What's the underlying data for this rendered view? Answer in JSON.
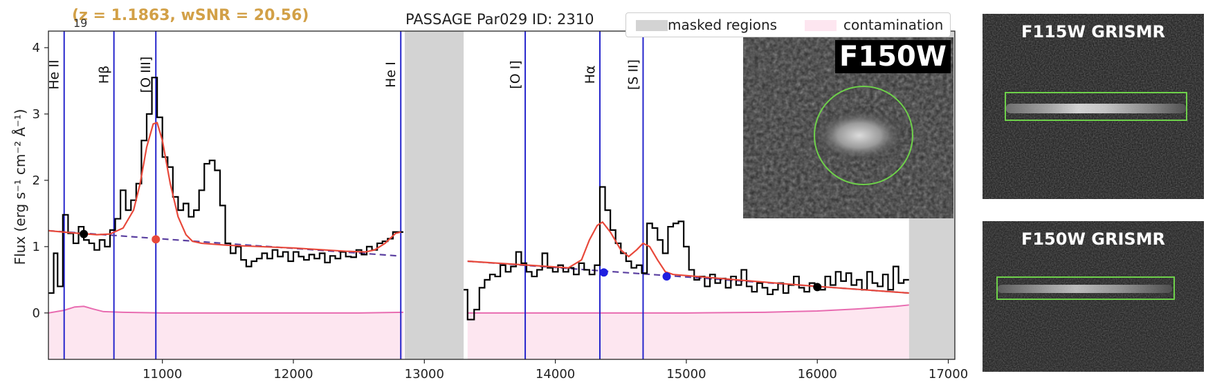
{
  "header": {
    "redshift_label": "(z = 1.1863, wSNR = 20.56)",
    "overlap_digits": "19",
    "plot_title": "PASSAGE Par029 ID: 2310"
  },
  "legend": {
    "masked": "masked regions",
    "contamination": "contamination"
  },
  "inset": {
    "label": "F150W"
  },
  "panels": [
    {
      "title": "F115W GRISMR"
    },
    {
      "title": "F150W GRISMR"
    }
  ],
  "colors": {
    "spectrum": "#000000",
    "model": "#e8483a",
    "continuum_dash": "#5a3fa0",
    "line_markers": "#2424cc",
    "masked": "#d3d3d3",
    "contamination_fill": "#fde6f0",
    "contamination_line": "#e86bb0",
    "label_text": "#d2a047",
    "aperture": "#6ed14a"
  },
  "chart_data": {
    "type": "line",
    "title": "PASSAGE Par029 ID: 2310",
    "xlabel": "",
    "ylabel": "Flux (erg s⁻¹ cm⁻² Å⁻¹)",
    "xlim": [
      10130,
      17050
    ],
    "ylim": [
      -0.7,
      4.25
    ],
    "xticks": [
      11000,
      12000,
      13000,
      14000,
      15000,
      16000,
      17000
    ],
    "yticks": [
      0,
      1,
      2,
      3,
      4
    ],
    "grid": false,
    "legend_position": "top-right",
    "masked_regions": [
      [
        12850,
        13300
      ],
      [
        16700,
        17050
      ]
    ],
    "emission_lines": [
      {
        "name": "He II",
        "x": 10250
      },
      {
        "name": "Hβ",
        "x": 10630
      },
      {
        "name": "[O III]",
        "x": 10950
      },
      {
        "name": "He I",
        "x": 12820
      },
      {
        "name": "[O I]",
        "x": 13770
      },
      {
        "name": "Hα",
        "x": 14340
      },
      {
        "name": "[S II]",
        "x": 14670
      }
    ],
    "series": [
      {
        "name": "spectrum",
        "style": "steps",
        "segments": [
          [
            [
              10130,
              0.3
            ],
            [
              10170,
              0.9
            ],
            [
              10200,
              0.4
            ],
            [
              10240,
              1.48
            ],
            [
              10280,
              1.2
            ],
            [
              10320,
              1.05
            ],
            [
              10360,
              1.3
            ],
            [
              10400,
              1.1
            ],
            [
              10440,
              1.05
            ],
            [
              10480,
              0.95
            ],
            [
              10520,
              1.1
            ],
            [
              10560,
              1.0
            ],
            [
              10600,
              1.25
            ],
            [
              10640,
              1.42
            ],
            [
              10680,
              1.85
            ],
            [
              10720,
              1.55
            ],
            [
              10760,
              1.7
            ],
            [
              10800,
              1.95
            ],
            [
              10840,
              2.6
            ],
            [
              10880,
              3.0
            ],
            [
              10920,
              3.55
            ],
            [
              10960,
              2.95
            ],
            [
              11000,
              2.35
            ],
            [
              11040,
              2.2
            ],
            [
              11080,
              1.75
            ],
            [
              11120,
              1.55
            ],
            [
              11160,
              1.65
            ],
            [
              11200,
              1.45
            ],
            [
              11240,
              1.55
            ],
            [
              11280,
              1.85
            ],
            [
              11320,
              2.25
            ],
            [
              11360,
              2.3
            ],
            [
              11400,
              2.15
            ],
            [
              11440,
              1.62
            ],
            [
              11480,
              1.05
            ],
            [
              11520,
              0.9
            ],
            [
              11560,
              1.0
            ],
            [
              11600,
              0.8
            ],
            [
              11640,
              0.7
            ],
            [
              11680,
              0.78
            ],
            [
              11720,
              0.82
            ],
            [
              11760,
              0.9
            ],
            [
              11800,
              0.82
            ],
            [
              11840,
              0.95
            ],
            [
              11880,
              0.85
            ],
            [
              11920,
              0.92
            ],
            [
              11960,
              0.78
            ],
            [
              12000,
              0.92
            ],
            [
              12040,
              0.85
            ],
            [
              12080,
              0.8
            ],
            [
              12120,
              0.88
            ],
            [
              12160,
              0.82
            ],
            [
              12200,
              0.9
            ],
            [
              12240,
              0.76
            ],
            [
              12280,
              0.86
            ],
            [
              12320,
              0.82
            ],
            [
              12360,
              0.92
            ],
            [
              12400,
              0.85
            ],
            [
              12440,
              0.84
            ],
            [
              12480,
              0.95
            ],
            [
              12520,
              0.88
            ],
            [
              12560,
              1.0
            ],
            [
              12600,
              0.95
            ],
            [
              12640,
              1.05
            ],
            [
              12680,
              1.08
            ],
            [
              12720,
              1.12
            ],
            [
              12760,
              1.22
            ],
            [
              12800,
              1.22
            ],
            [
              12840,
              1.22
            ]
          ],
          [
            [
              13300,
              0.35
            ],
            [
              13330,
              -0.1
            ],
            [
              13380,
              0.05
            ],
            [
              13420,
              0.38
            ],
            [
              13460,
              0.5
            ],
            [
              13500,
              0.58
            ],
            [
              13540,
              0.55
            ],
            [
              13580,
              0.72
            ],
            [
              13620,
              0.62
            ],
            [
              13660,
              0.7
            ],
            [
              13700,
              0.92
            ],
            [
              13740,
              0.75
            ],
            [
              13780,
              0.62
            ],
            [
              13820,
              0.55
            ],
            [
              13860,
              0.65
            ],
            [
              13900,
              0.9
            ],
            [
              13940,
              0.68
            ],
            [
              13980,
              0.62
            ],
            [
              14020,
              0.72
            ],
            [
              14060,
              0.62
            ],
            [
              14100,
              0.68
            ],
            [
              14140,
              0.58
            ],
            [
              14180,
              0.75
            ],
            [
              14220,
              0.65
            ],
            [
              14260,
              0.58
            ],
            [
              14300,
              0.72
            ],
            [
              14340,
              1.9
            ],
            [
              14380,
              1.55
            ],
            [
              14420,
              1.25
            ],
            [
              14460,
              1.05
            ],
            [
              14500,
              0.9
            ],
            [
              14540,
              0.78
            ],
            [
              14580,
              0.68
            ],
            [
              14620,
              0.72
            ],
            [
              14660,
              0.6
            ],
            [
              14700,
              1.35
            ],
            [
              14740,
              1.28
            ],
            [
              14780,
              1.1
            ],
            [
              14820,
              0.9
            ],
            [
              14860,
              1.3
            ],
            [
              14900,
              1.35
            ],
            [
              14940,
              1.38
            ],
            [
              14980,
              1.0
            ],
            [
              15020,
              0.65
            ],
            [
              15060,
              0.5
            ],
            [
              15100,
              0.55
            ],
            [
              15140,
              0.4
            ],
            [
              15180,
              0.58
            ],
            [
              15220,
              0.45
            ],
            [
              15260,
              0.52
            ],
            [
              15300,
              0.38
            ],
            [
              15340,
              0.55
            ],
            [
              15380,
              0.42
            ],
            [
              15420,
              0.65
            ],
            [
              15460,
              0.4
            ],
            [
              15500,
              0.32
            ],
            [
              15540,
              0.45
            ],
            [
              15580,
              0.38
            ],
            [
              15620,
              0.28
            ],
            [
              15660,
              0.35
            ],
            [
              15700,
              0.45
            ],
            [
              15740,
              0.3
            ],
            [
              15780,
              0.42
            ],
            [
              15820,
              0.55
            ],
            [
              15860,
              0.38
            ],
            [
              15900,
              0.32
            ],
            [
              15940,
              0.45
            ],
            [
              15980,
              0.4
            ],
            [
              16020,
              0.35
            ],
            [
              16060,
              0.55
            ],
            [
              16100,
              0.42
            ],
            [
              16140,
              0.62
            ],
            [
              16180,
              0.48
            ],
            [
              16220,
              0.6
            ],
            [
              16260,
              0.42
            ],
            [
              16300,
              0.5
            ],
            [
              16340,
              0.35
            ],
            [
              16380,
              0.62
            ],
            [
              16420,
              0.45
            ],
            [
              16460,
              0.4
            ],
            [
              16500,
              0.58
            ],
            [
              16540,
              0.35
            ],
            [
              16580,
              0.7
            ],
            [
              16620,
              0.45
            ],
            [
              16660,
              0.5
            ],
            [
              16700,
              0.5
            ]
          ]
        ]
      },
      {
        "name": "model",
        "style": "line",
        "segments": [
          [
            [
              10130,
              1.24
            ],
            [
              10300,
              1.21
            ],
            [
              10500,
              1.18
            ],
            [
              10600,
              1.19
            ],
            [
              10700,
              1.28
            ],
            [
              10780,
              1.55
            ],
            [
              10830,
              1.95
            ],
            [
              10880,
              2.5
            ],
            [
              10930,
              2.85
            ],
            [
              10960,
              2.87
            ],
            [
              11000,
              2.6
            ],
            [
              11060,
              1.95
            ],
            [
              11120,
              1.45
            ],
            [
              11180,
              1.18
            ],
            [
              11230,
              1.08
            ],
            [
              11300,
              1.05
            ],
            [
              11500,
              1.02
            ],
            [
              12000,
              0.98
            ],
            [
              12400,
              0.93
            ],
            [
              12550,
              0.92
            ],
            [
              12620,
              0.95
            ],
            [
              12700,
              1.05
            ],
            [
              12780,
              1.2
            ],
            [
              12820,
              1.22
            ]
          ],
          [
            [
              13330,
              0.78
            ],
            [
              13800,
              0.72
            ],
            [
              14100,
              0.68
            ],
            [
              14200,
              0.8
            ],
            [
              14260,
              1.1
            ],
            [
              14320,
              1.32
            ],
            [
              14360,
              1.37
            ],
            [
              14420,
              1.22
            ],
            [
              14500,
              0.95
            ],
            [
              14560,
              0.85
            ],
            [
              14620,
              0.95
            ],
            [
              14670,
              1.05
            ],
            [
              14720,
              1.0
            ],
            [
              14780,
              0.8
            ],
            [
              14840,
              0.62
            ],
            [
              14900,
              0.58
            ],
            [
              15500,
              0.48
            ],
            [
              16000,
              0.4
            ],
            [
              16700,
              0.3
            ]
          ]
        ]
      },
      {
        "name": "continuum",
        "style": "dashed",
        "segments": [
          [
            [
              10130,
              1.24
            ],
            [
              12800,
              0.86
            ]
          ],
          [
            [
              13330,
              0.78
            ],
            [
              16700,
              0.3
            ]
          ]
        ]
      },
      {
        "name": "contamination",
        "style": "fill",
        "segments": [
          [
            [
              10130,
              0.0
            ],
            [
              10250,
              0.04
            ],
            [
              10330,
              0.09
            ],
            [
              10400,
              0.1
            ],
            [
              10470,
              0.06
            ],
            [
              10550,
              0.02
            ],
            [
              10700,
              0.01
            ],
            [
              11000,
              0.0
            ],
            [
              11500,
              0.0
            ],
            [
              12000,
              0.0
            ],
            [
              12500,
              0.0
            ],
            [
              12840,
              0.01
            ]
          ],
          [
            [
              13330,
              0.0
            ],
            [
              14000,
              0.0
            ],
            [
              15000,
              0.0
            ],
            [
              15600,
              0.01
            ],
            [
              16000,
              0.03
            ],
            [
              16300,
              0.06
            ],
            [
              16600,
              0.1
            ],
            [
              16700,
              0.12
            ]
          ]
        ]
      }
    ],
    "markers": [
      {
        "x": 10400,
        "y": 1.19,
        "color": "black"
      },
      {
        "x": 10950,
        "y": 1.11,
        "color": "red"
      },
      {
        "x": 14370,
        "y": 0.61,
        "color": "blue"
      },
      {
        "x": 14850,
        "y": 0.55,
        "color": "blue"
      },
      {
        "x": 16000,
        "y": 0.39,
        "color": "black"
      }
    ]
  }
}
